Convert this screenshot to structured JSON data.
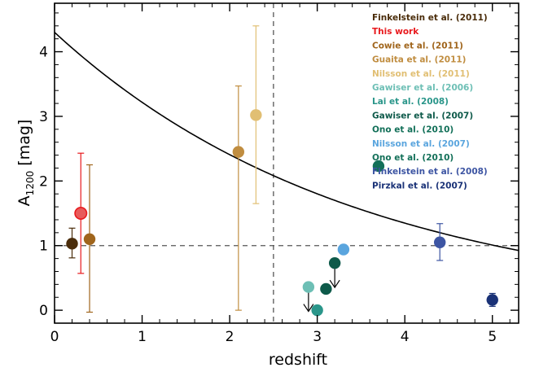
{
  "chart_data": {
    "type": "scatter",
    "xlabel": "redshift",
    "ylabel": {
      "main": "A",
      "sub": "1200",
      "rest": " [mag]"
    },
    "xlim": [
      0,
      5.3
    ],
    "ylim": [
      -0.2,
      4.75
    ],
    "xticks": [
      0,
      1,
      2,
      3,
      4,
      5
    ],
    "yticks": [
      0,
      1,
      2,
      3,
      4
    ],
    "vline_x": 2.5,
    "hline_y": 1.0,
    "curve": {
      "description": "A1200 model curve",
      "a": 4.3,
      "b": 0.29
    },
    "legend_position": "top-right",
    "series": [
      {
        "name": "Finkelstein et al. (2011)",
        "color": "#4a2c0a",
        "points": [
          {
            "x": 0.2,
            "y": 1.03,
            "yerr_lo": 0.22,
            "yerr_hi": 0.24
          }
        ]
      },
      {
        "name": "This work",
        "color": "#e8191d",
        "fill": "#e85a5a",
        "points": [
          {
            "x": 0.3,
            "y": 1.5,
            "yerr_lo": 0.93,
            "yerr_hi": 0.93
          }
        ]
      },
      {
        "name": "Cowie et al. (2011)",
        "color": "#a0651c",
        "points": [
          {
            "x": 0.4,
            "y": 1.1,
            "yerr_lo": 1.13,
            "yerr_hi": 1.15
          }
        ]
      },
      {
        "name": "Guaita et al. (2011)",
        "color": "#c08d40",
        "points": [
          {
            "x": 2.1,
            "y": 2.45,
            "yerr_lo": 2.45,
            "yerr_hi": 1.02
          }
        ]
      },
      {
        "name": "Nilsson et al. (2011)",
        "color": "#e1bf73",
        "points": [
          {
            "x": 2.3,
            "y": 3.02,
            "yerr_lo": 1.37,
            "yerr_hi": 1.38
          }
        ]
      },
      {
        "name": "Gawiser et al. (2006)",
        "color": "#6dbfb5",
        "points": [
          {
            "x": 2.9,
            "y": 0.36,
            "upper_limit": true
          }
        ]
      },
      {
        "name": "Lai et al. (2008)",
        "color": "#2a968a",
        "points": [
          {
            "x": 3.0,
            "y": 0.0
          }
        ]
      },
      {
        "name": "Gawiser et al. (2007)",
        "color": "#0e5a4a",
        "points": [
          {
            "x": 3.1,
            "y": 0.33
          },
          {
            "x": 3.2,
            "y": 0.73,
            "upper_limit": true
          }
        ]
      },
      {
        "name": "Ono et al. (2010)",
        "color": "#137059",
        "points": [
          {
            "x": 3.7,
            "y": 2.23
          }
        ]
      },
      {
        "name": "Nilsson et al. (2007)",
        "color": "#5aa5de",
        "points": [
          {
            "x": 3.3,
            "y": 0.94
          }
        ]
      },
      {
        "name": "Ono et al. (2010)",
        "color": "#137059",
        "points": []
      },
      {
        "name": "Finkelstein et al. (2008)",
        "color": "#3d55a3",
        "points": [
          {
            "x": 4.4,
            "y": 1.05,
            "yerr_lo": 0.28,
            "yerr_hi": 0.29
          }
        ]
      },
      {
        "name": "Pirzkal et al. (2007)",
        "color": "#1a3277",
        "points": [
          {
            "x": 5.0,
            "y": 0.16,
            "yerr_lo": 0.1,
            "yerr_hi": 0.1
          }
        ]
      }
    ]
  }
}
